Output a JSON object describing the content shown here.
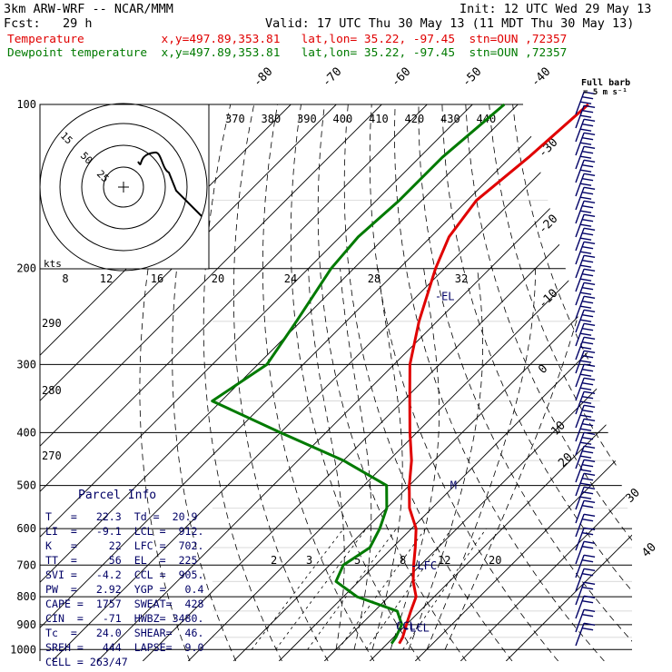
{
  "header": {
    "model": "3km ARW-WRF -- NCAR/MMM",
    "init": "Init: 12 UTC Wed 29 May 13",
    "fcst": "Fcst:   29 h",
    "valid": "Valid: 17 UTC Thu 30 May 13 (11 MDT Thu 30 May 13)",
    "temp_line": "Temperature           x,y=497.89,353.81   lat,lon= 35.22, -97.45  stn=OUN ,72357",
    "dew_line": "Dewpoint temperature  x,y=497.89,353.81   lat,lon= 35.22, -97.45  stn=OUN ,72357"
  },
  "colors": {
    "temperature": "#e00000",
    "dewpoint": "#007a00",
    "parcel": "#000066",
    "grid": "#000000"
  },
  "chart_data": {
    "type": "line",
    "plot_type": "skew-T log-p",
    "pressure_labels": [
      "100",
      "200",
      "300",
      "400",
      "500",
      "600",
      "700",
      "800",
      "900",
      "1000"
    ],
    "pressure_levels": [
      100,
      200,
      300,
      400,
      500,
      600,
      700,
      800,
      900,
      1000
    ],
    "isotherm_labels": [
      "-80",
      "-70",
      "-60",
      "-50",
      "-40",
      "-30",
      "-20",
      "-10",
      "0",
      "10",
      "20",
      "30",
      "40"
    ],
    "theta_e_labels": [
      "370",
      "380",
      "390",
      "400",
      "410",
      "420",
      "430",
      "440"
    ],
    "theta_labels": [
      "290",
      "280",
      "270"
    ],
    "mixing_ratio_labels": [
      "2",
      "3",
      "5",
      "8",
      "12",
      "20"
    ],
    "hodo_speed_labels": [
      "8",
      "12",
      "16",
      "20",
      "24",
      "28",
      "32"
    ],
    "hodo_ring_labels": [
      "15",
      "50",
      "25"
    ],
    "hodo_unit": "kts",
    "barb_title": "Full barb",
    "barb_unit": "= 5 m s⁻¹",
    "series": [
      {
        "name": "Temperature",
        "color": "#e00000",
        "points": [
          [
            100,
            -54.5
          ],
          [
            125,
            -56
          ],
          [
            150,
            -58
          ],
          [
            175,
            -56
          ],
          [
            200,
            -52
          ],
          [
            250,
            -44
          ],
          [
            300,
            -36.5
          ],
          [
            350,
            -28.5
          ],
          [
            400,
            -21.5
          ],
          [
            450,
            -15
          ],
          [
            500,
            -10
          ],
          [
            550,
            -5
          ],
          [
            600,
            1
          ],
          [
            650,
            5
          ],
          [
            700,
            8.5
          ],
          [
            750,
            12
          ],
          [
            800,
            16
          ],
          [
            850,
            18
          ],
          [
            900,
            20
          ],
          [
            950,
            22
          ],
          [
            975,
            22.6
          ]
        ]
      },
      {
        "name": "Dewpoint temperature",
        "color": "#007a00",
        "points": [
          [
            100,
            -73
          ],
          [
            125,
            -75
          ],
          [
            150,
            -75
          ],
          [
            175,
            -76
          ],
          [
            200,
            -75
          ],
          [
            250,
            -71
          ],
          [
            300,
            -68
          ],
          [
            350,
            -72
          ],
          [
            400,
            -50
          ],
          [
            450,
            -30
          ],
          [
            500,
            -15
          ],
          [
            550,
            -10
          ],
          [
            600,
            -7
          ],
          [
            650,
            -5
          ],
          [
            700,
            -7
          ],
          [
            750,
            -5
          ],
          [
            800,
            3
          ],
          [
            850,
            15
          ],
          [
            900,
            19
          ],
          [
            950,
            20.5
          ],
          [
            975,
            20.9
          ]
        ]
      }
    ],
    "annotations": [
      {
        "text": "-EL",
        "p": 225,
        "t": -46
      },
      {
        "text": "-LFC",
        "p": 702,
        "t": 8
      },
      {
        "text": "-LCL",
        "p": 912,
        "t": 20
      },
      {
        "text": "CCL-",
        "p": 905,
        "t": 18
      },
      {
        "text": "M",
        "p": 500,
        "t": -1
      }
    ],
    "hodograph_trace": [
      [
        180,
        178
      ],
      [
        174,
        182
      ],
      [
        170,
        168
      ],
      [
        158,
        168
      ],
      [
        152,
        180
      ],
      [
        148,
        188
      ]
    ]
  },
  "parcel": {
    "title": "Parcel Info",
    "rows": [
      "T   =   22.3  Td =  20.9",
      "LI  =   -9.1  LCL =  912.",
      "K   =     22  LFC =  702.",
      "TT  =     56  EL  =  225",
      "SVI =   -4.2  CCL =  905.",
      "PW  =   2.92  YGP =   0.4",
      "CAPE =  1757  SWEAT=  428",
      "CIN  =   -71  HWBZ= 3480.",
      "Tc  =   24.0  SHEAR=  46.",
      "SREH =   444  LAPSE=  9.0",
      "CELL = 263/47"
    ]
  }
}
